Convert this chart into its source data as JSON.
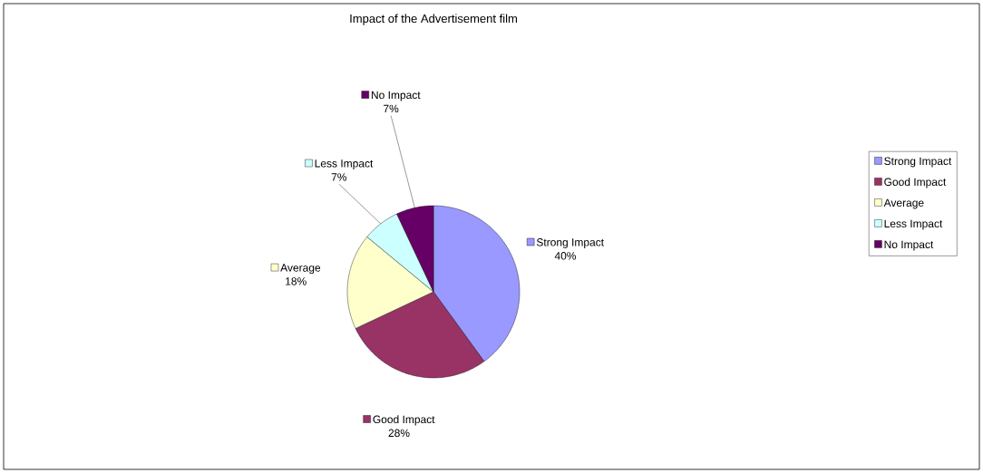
{
  "chart_data": {
    "type": "pie",
    "title": "Impact of the Advertisement film",
    "categories": [
      "Strong Impact",
      "Good Impact",
      "Average",
      "Less Impact",
      "No Impact"
    ],
    "values": [
      40,
      28,
      18,
      7,
      7
    ],
    "value_labels": [
      "40%",
      "28%",
      "18%",
      "7%",
      "7%"
    ],
    "colors": [
      "#9999ff",
      "#993366",
      "#ffffcc",
      "#ccffff",
      "#660066"
    ],
    "legend": "right"
  }
}
